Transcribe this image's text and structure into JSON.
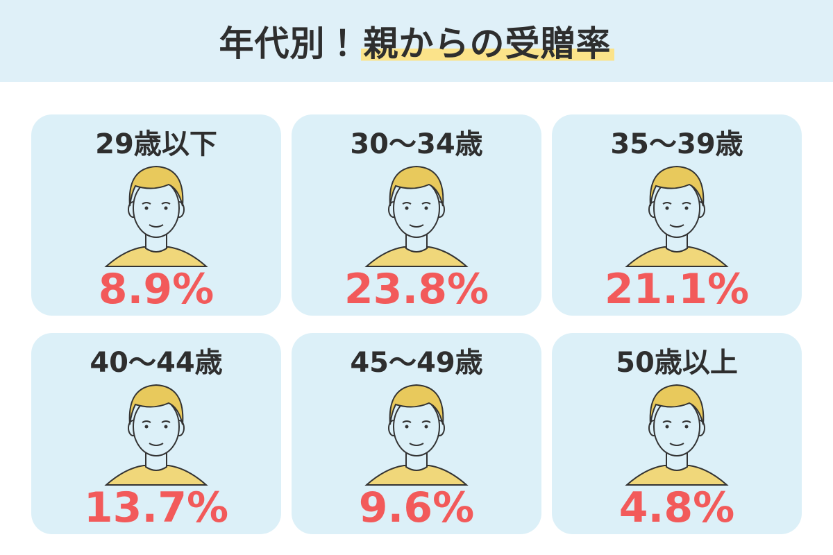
{
  "header": {
    "title_lead": "年代別！",
    "title_highlight": "親からの受贈率"
  },
  "cards": [
    {
      "label": "29歳以下",
      "rate": "8.9%"
    },
    {
      "label": "30～34歳",
      "rate": "23.8%"
    },
    {
      "label": "35～39歳",
      "rate": "21.1%"
    },
    {
      "label": "40～44歳",
      "rate": "13.7%"
    },
    {
      "label": "45～49歳",
      "rate": "9.6%"
    },
    {
      "label": "50歳以上",
      "rate": "4.8%"
    }
  ]
}
